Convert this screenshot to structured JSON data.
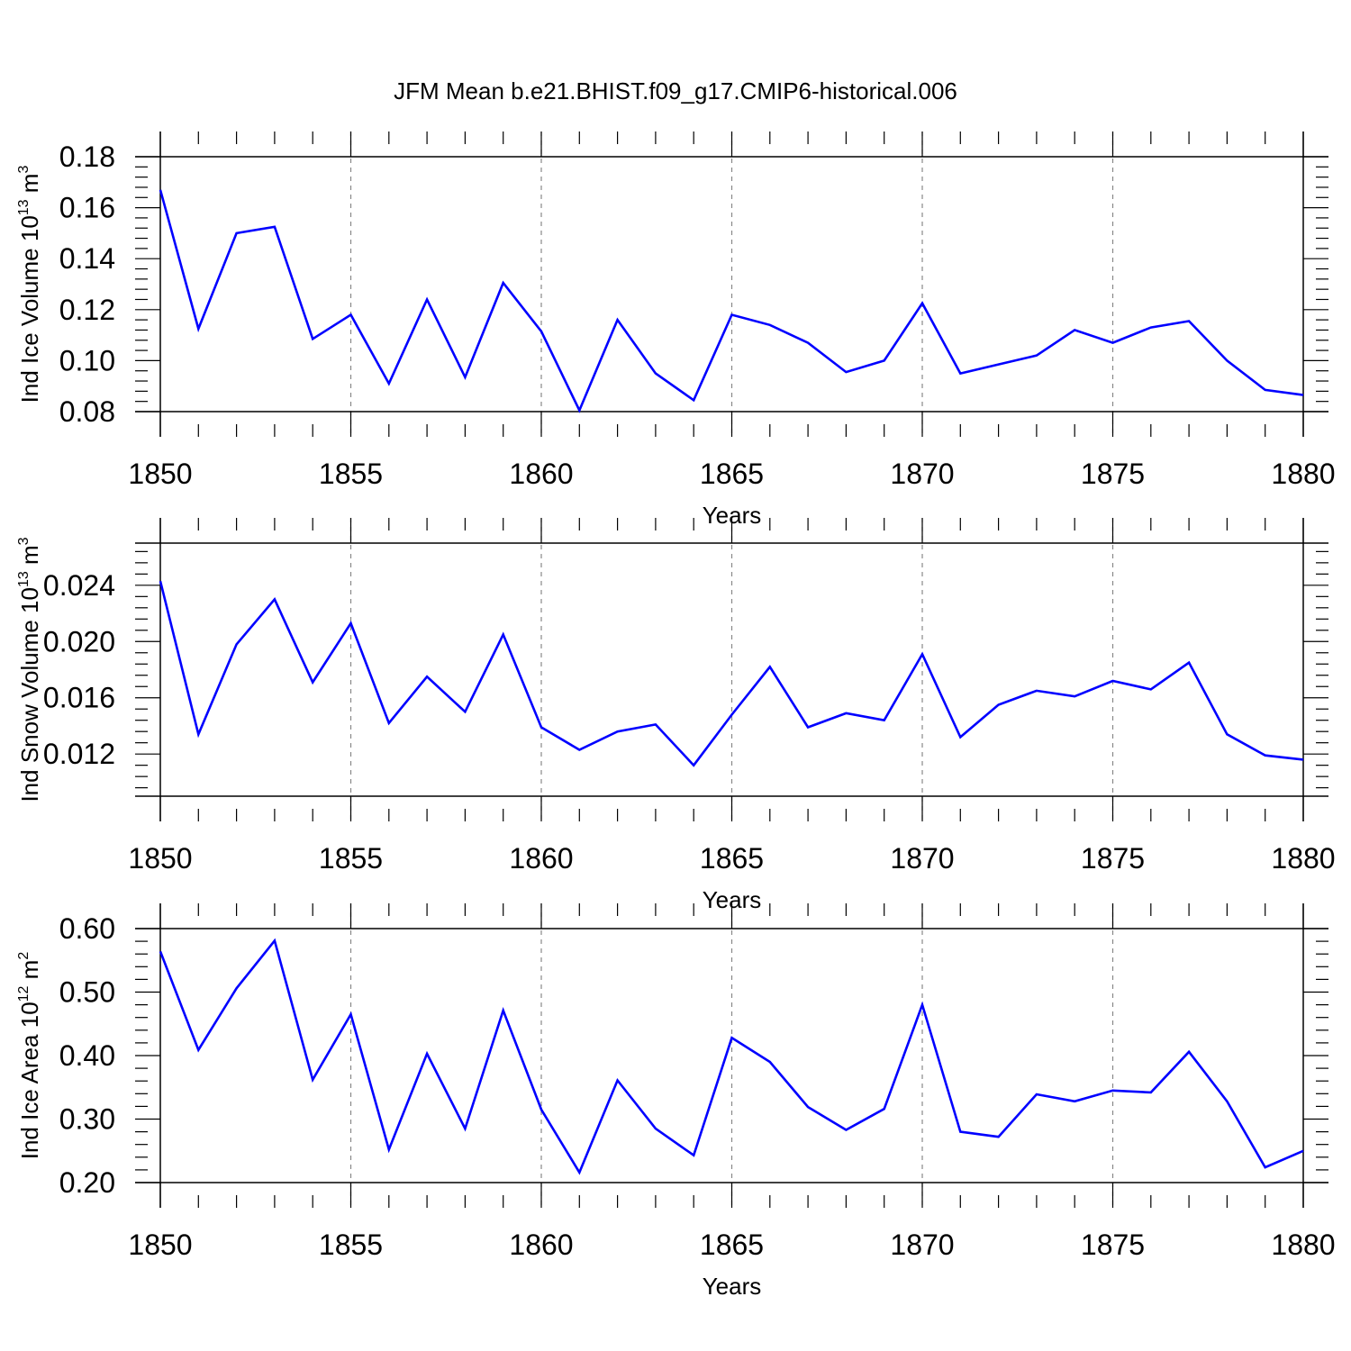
{
  "title": "JFM Mean b.e21.BHIST.f09_g17.CMIP6-historical.006",
  "colors": {
    "line": "#0000ff",
    "axes": "#000000",
    "grid": "#888888"
  },
  "chart_data": [
    {
      "type": "line",
      "title": "JFM Mean b.e21.BHIST.f09_g17.CMIP6-historical.006",
      "xlabel": "Years",
      "ylabel_parts": {
        "name": "Ind Ice Volume 10",
        "exp": "13",
        "unit": " m",
        "unit_exp": "3"
      },
      "xlim": [
        1850,
        1880
      ],
      "ylim": [
        0.08,
        0.18
      ],
      "x_ticks": [
        1850,
        1855,
        1860,
        1865,
        1870,
        1875,
        1880
      ],
      "y_ticks": [
        0.08,
        0.1,
        0.12,
        0.14,
        0.16,
        0.18
      ],
      "y_tick_labels": [
        "0.08",
        "0.10",
        "0.12",
        "0.14",
        "0.16",
        "0.18"
      ],
      "x": [
        1850,
        1851,
        1852,
        1853,
        1854,
        1855,
        1856,
        1857,
        1858,
        1859,
        1860,
        1861,
        1862,
        1863,
        1864,
        1865,
        1866,
        1867,
        1868,
        1869,
        1870,
        1871,
        1872,
        1873,
        1874,
        1875,
        1876,
        1877,
        1878,
        1879,
        1880
      ],
      "series": [
        {
          "name": "Ind Ice Volume",
          "values": [
            0.167,
            0.1125,
            0.15,
            0.1525,
            0.1085,
            0.118,
            0.091,
            0.124,
            0.0935,
            0.1305,
            0.1115,
            0.0805,
            0.116,
            0.095,
            0.0845,
            0.118,
            0.114,
            0.107,
            0.0955,
            0.1,
            0.1225,
            0.095,
            0.0985,
            0.102,
            0.112,
            0.107,
            0.113,
            0.1155,
            0.1,
            0.0885,
            0.0865
          ]
        }
      ]
    },
    {
      "type": "line",
      "xlabel": "Years",
      "ylabel_parts": {
        "name": "Ind Snow Volume 10",
        "exp": "13",
        "unit": " m",
        "unit_exp": "3"
      },
      "xlim": [
        1850,
        1880
      ],
      "ylim": [
        0.009,
        0.027
      ],
      "x_ticks": [
        1850,
        1855,
        1860,
        1865,
        1870,
        1875,
        1880
      ],
      "y_ticks": [
        0.012,
        0.016,
        0.02,
        0.024
      ],
      "y_tick_labels": [
        "0.012",
        "0.016",
        "0.020",
        "0.024"
      ],
      "x": [
        1850,
        1851,
        1852,
        1853,
        1854,
        1855,
        1856,
        1857,
        1858,
        1859,
        1860,
        1861,
        1862,
        1863,
        1864,
        1865,
        1866,
        1867,
        1868,
        1869,
        1870,
        1871,
        1872,
        1873,
        1874,
        1875,
        1876,
        1877,
        1878,
        1879,
        1880
      ],
      "series": [
        {
          "name": "Ind Snow Volume",
          "values": [
            0.0243,
            0.0134,
            0.0198,
            0.023,
            0.0171,
            0.0213,
            0.0142,
            0.0175,
            0.015,
            0.0205,
            0.0139,
            0.0123,
            0.0136,
            0.0141,
            0.0112,
            0.0148,
            0.0182,
            0.0139,
            0.0149,
            0.0144,
            0.0191,
            0.0132,
            0.0155,
            0.0165,
            0.0161,
            0.0172,
            0.0166,
            0.0185,
            0.0134,
            0.0119,
            0.0116
          ]
        }
      ]
    },
    {
      "type": "line",
      "xlabel": "Years",
      "ylabel_parts": {
        "name": "Ind Ice Area 10",
        "exp": "12",
        "unit": " m",
        "unit_exp": "2"
      },
      "xlim": [
        1850,
        1880
      ],
      "ylim": [
        0.2,
        0.6
      ],
      "x_ticks": [
        1850,
        1855,
        1860,
        1865,
        1870,
        1875,
        1880
      ],
      "y_ticks": [
        0.2,
        0.3,
        0.4,
        0.5,
        0.6
      ],
      "y_tick_labels": [
        "0.20",
        "0.30",
        "0.40",
        "0.50",
        "0.60"
      ],
      "x": [
        1850,
        1851,
        1852,
        1853,
        1854,
        1855,
        1856,
        1857,
        1858,
        1859,
        1860,
        1861,
        1862,
        1863,
        1864,
        1865,
        1866,
        1867,
        1868,
        1869,
        1870,
        1871,
        1872,
        1873,
        1874,
        1875,
        1876,
        1877,
        1878,
        1879,
        1880
      ],
      "series": [
        {
          "name": "Ind Ice Area",
          "values": [
            0.564,
            0.409,
            0.506,
            0.581,
            0.362,
            0.465,
            0.252,
            0.403,
            0.285,
            0.471,
            0.315,
            0.216,
            0.361,
            0.285,
            0.243,
            0.428,
            0.39,
            0.319,
            0.283,
            0.316,
            0.48,
            0.28,
            0.272,
            0.339,
            0.328,
            0.345,
            0.342,
            0.406,
            0.328,
            0.224,
            0.25
          ]
        }
      ]
    }
  ]
}
